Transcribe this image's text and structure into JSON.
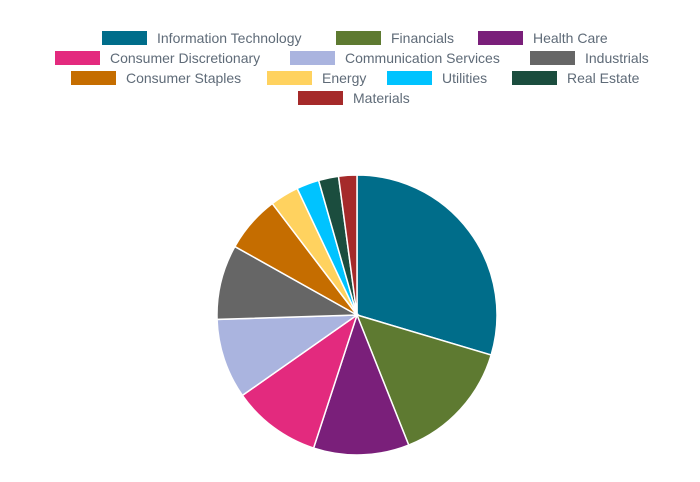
{
  "chart_data": {
    "type": "pie",
    "title": "",
    "legend_position": "top-center",
    "slices": [
      {
        "label": "Information Technology",
        "value": 29.5,
        "color": "#006d8a"
      },
      {
        "label": "Financials",
        "value": 14.3,
        "color": "#5e7a31"
      },
      {
        "label": "Health Care",
        "value": 11.0,
        "color": "#7a1f7a"
      },
      {
        "label": "Consumer Discretionary",
        "value": 10.2,
        "color": "#e32a7e"
      },
      {
        "label": "Communication Services",
        "value": 9.2,
        "color": "#aab4df"
      },
      {
        "label": "Industrials",
        "value": 8.6,
        "color": "#666666"
      },
      {
        "label": "Consumer Staples",
        "value": 6.5,
        "color": "#c56d00"
      },
      {
        "label": "Energy",
        "value": 3.3,
        "color": "#ffd25f"
      },
      {
        "label": "Utilities",
        "value": 2.6,
        "color": "#00c3ff"
      },
      {
        "label": "Real Estate",
        "value": 2.3,
        "color": "#1b4d3e"
      },
      {
        "label": "Materials",
        "value": 2.1,
        "color": "#a52a2a"
      }
    ]
  }
}
